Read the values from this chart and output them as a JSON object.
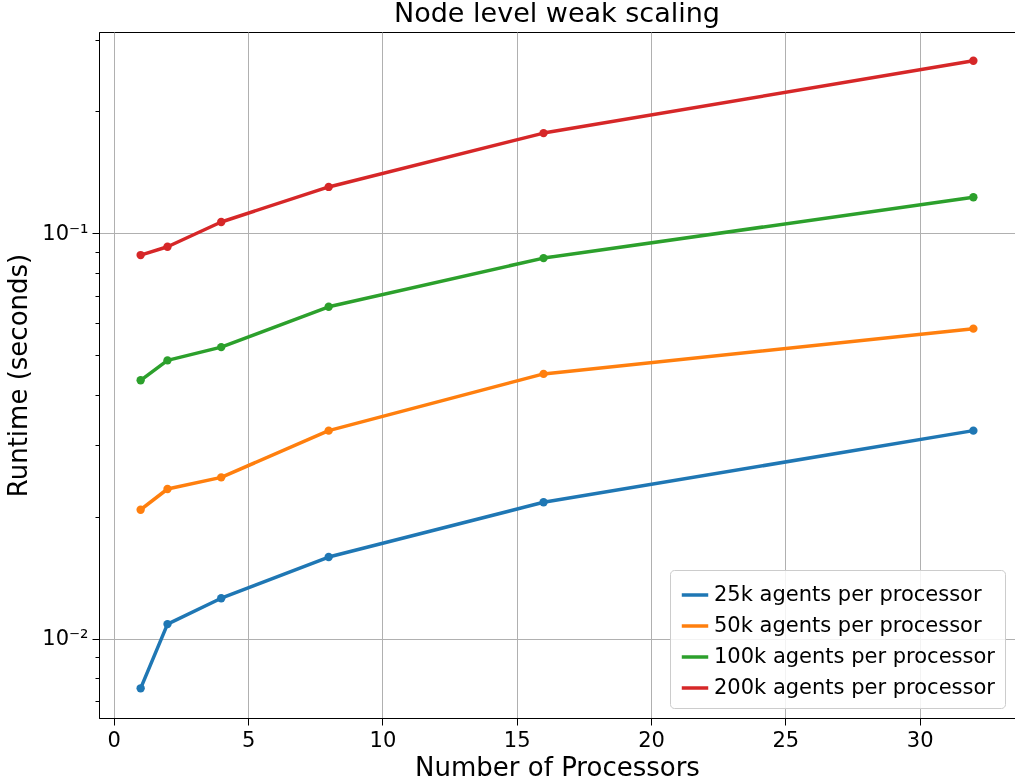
{
  "chart_data": {
    "type": "line",
    "title": "Node level weak scaling",
    "xlabel": "Number of Processors",
    "ylabel": "Runtime (seconds)",
    "x": [
      1,
      2,
      4,
      8,
      16,
      32
    ],
    "series": [
      {
        "name": "25k agents per processor",
        "color": "#1f77b4",
        "values": [
          0.00754,
          0.01086,
          0.01258,
          0.0159,
          0.0217,
          0.0326
        ]
      },
      {
        "name": "50k agents per processor",
        "color": "#ff7f0e",
        "values": [
          0.0208,
          0.0234,
          0.025,
          0.0326,
          0.045,
          0.0582
        ]
      },
      {
        "name": "100k agents per processor",
        "color": "#2ca02c",
        "values": [
          0.0434,
          0.0486,
          0.0524,
          0.0659,
          0.0869,
          0.1228
        ]
      },
      {
        "name": "200k agents per processor",
        "color": "#d62728",
        "values": [
          0.0884,
          0.0927,
          0.1067,
          0.1302,
          0.1768,
          0.2666
        ]
      }
    ],
    "log": "y",
    "xlim": [
      -0.55,
      33.55
    ],
    "xticks": [
      0,
      5,
      10,
      15,
      20,
      25,
      30
    ],
    "ylim": [
      0.00637,
      0.314
    ],
    "yticks": [
      {
        "value": 0.007,
        "label": null
      },
      {
        "value": 0.008,
        "label": null
      },
      {
        "value": 0.009,
        "label": null
      },
      {
        "value": 0.01,
        "label": "10⁻²"
      },
      {
        "value": 0.02,
        "label": null
      },
      {
        "value": 0.03,
        "label": null
      },
      {
        "value": 0.04,
        "label": null
      },
      {
        "value": 0.05,
        "label": null
      },
      {
        "value": 0.06,
        "label": null
      },
      {
        "value": 0.07,
        "label": null
      },
      {
        "value": 0.08,
        "label": null
      },
      {
        "value": 0.09,
        "label": null
      },
      {
        "value": 0.1,
        "label": "10⁻¹"
      },
      {
        "value": 0.2,
        "label": null
      },
      {
        "value": 0.3,
        "label": null
      }
    ],
    "grid": true,
    "legend": "bottom right",
    "marker": "circle",
    "line_style": "solid"
  }
}
